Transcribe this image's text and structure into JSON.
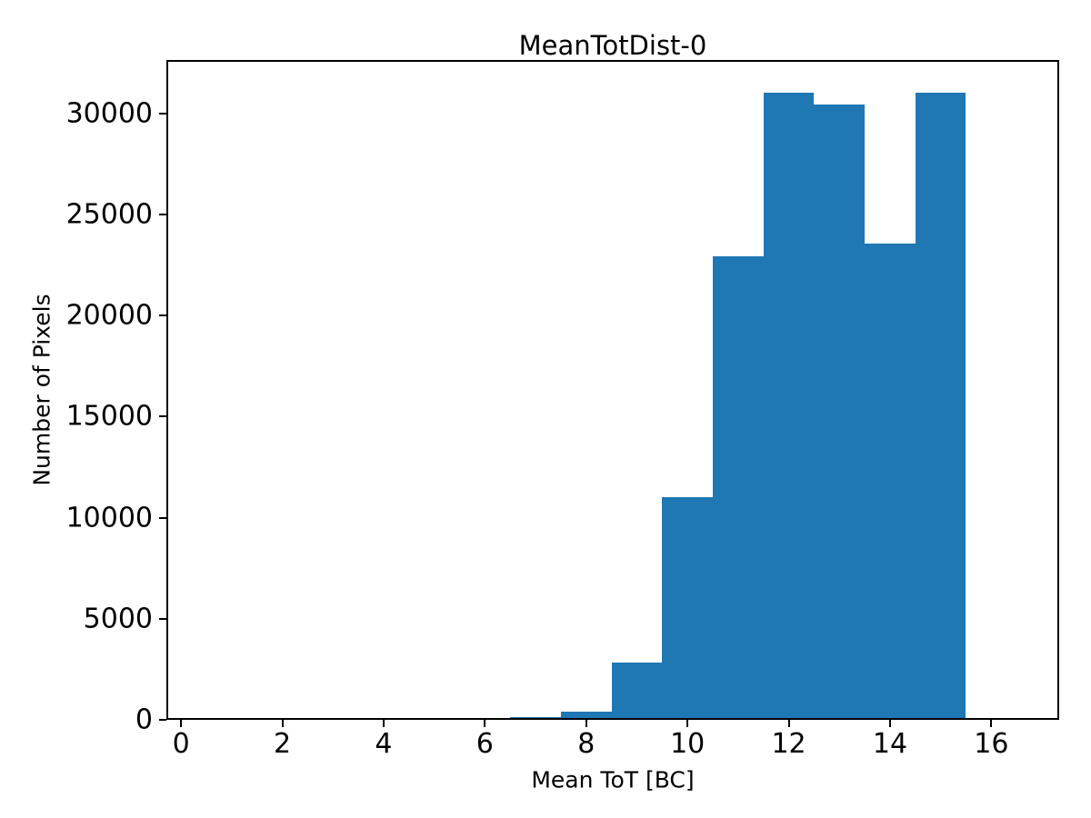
{
  "figure": {
    "background_color": "#ffffff",
    "text_color": "#000000"
  },
  "chart_data": {
    "type": "bar",
    "subtype": "histogram",
    "title": "MeanTotDist-0",
    "xlabel": "Mean ToT [BC]",
    "ylabel": "Number of Pixels",
    "bin_edges": [
      6.5,
      7.5,
      8.5,
      9.5,
      10.5,
      11.5,
      12.5,
      13.5,
      14.5,
      15.5
    ],
    "bin_centers": [
      7,
      8,
      9,
      10,
      11,
      12,
      13,
      14,
      15
    ],
    "values": [
      150,
      400,
      2850,
      11000,
      22950,
      31050,
      30450,
      23550,
      31050
    ],
    "xlim": [
      -0.29,
      17.34
    ],
    "ylim": [
      0,
      32650
    ],
    "xticks": [
      0,
      2,
      4,
      6,
      8,
      10,
      12,
      14,
      16
    ],
    "yticks": [
      0,
      5000,
      10000,
      15000,
      20000,
      25000,
      30000
    ],
    "xtick_labels": [
      "0",
      "2",
      "4",
      "6",
      "8",
      "10",
      "12",
      "14",
      "16"
    ],
    "ytick_labels": [
      "0",
      "5000",
      "10000",
      "15000",
      "20000",
      "25000",
      "30000"
    ],
    "bar_color": "#1f77b4",
    "grid": false,
    "legend": null
  }
}
